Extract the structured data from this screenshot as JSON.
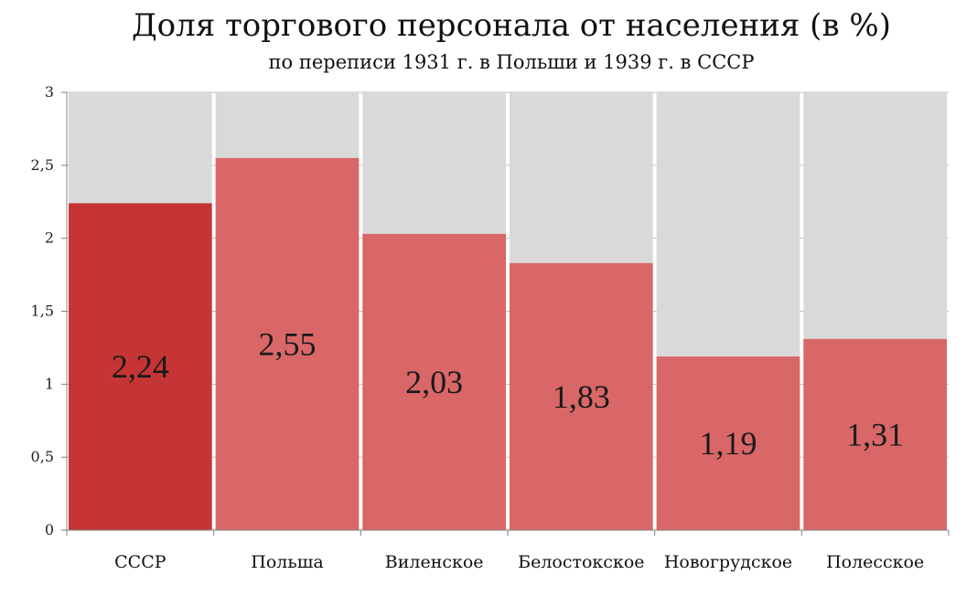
{
  "chart_data": {
    "type": "bar",
    "title": "Доля торгового персонала от населения (в %)",
    "subtitle": "по переписи 1931 г. в Польши и 1939 г. в СССР",
    "categories": [
      "СССР",
      "Польша",
      "Виленское",
      "Белостокское",
      "Новогрудское",
      "Полесское"
    ],
    "values": [
      2.24,
      2.55,
      2.03,
      1.83,
      1.19,
      1.31
    ],
    "value_labels": [
      "2,24",
      "2,55",
      "2,03",
      "1,83",
      "1,19",
      "1,31"
    ],
    "ylim": [
      0,
      3
    ],
    "yticks": [
      0,
      0.5,
      1,
      1.5,
      2,
      2.5,
      3
    ],
    "ytick_labels": [
      "0",
      "0,5",
      "1",
      "1,5",
      "2",
      "2,5",
      "3"
    ],
    "grid": true,
    "legend": "none",
    "colors": {
      "highlight_bar": "#c63535",
      "bar": "#d96767",
      "background_column": "#d9d9d9",
      "gridline": "#bfbfbf",
      "axis": "#808080"
    }
  }
}
